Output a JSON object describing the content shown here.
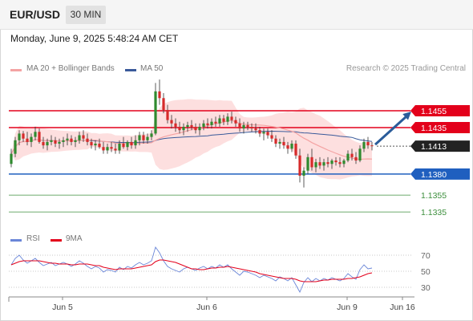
{
  "header": {
    "symbol": "EUR/USD",
    "timeframe": "30 MIN"
  },
  "datetime": "Monday, June 9, 2025 5:48:24 AM CET",
  "legend": {
    "ma20_label": "MA 20 + Bollinger Bands",
    "ma50_label": "MA 50",
    "credit": "Research © 2025 Trading Central"
  },
  "rsi_legend": {
    "rsi_label": "RSI",
    "ma_label": "9MA"
  },
  "colors": {
    "ma20": "#f4a3a3",
    "ma50": "#3a5a9a",
    "bands": "#fdd9d9",
    "resistance": "#e3001b",
    "support": "#1f5fbf",
    "target": "#3d8f3d",
    "bull": "#2f8a2f",
    "bear": "#d62a2a",
    "current": "#222222",
    "arrow": "#2a5c9a",
    "rsi": "#6a86d8",
    "rsi_ma": "#e3001b"
  },
  "chart_data": {
    "type": "candlestick",
    "title": "EUR/USD",
    "ylim": [
      1.1318,
      1.1495
    ],
    "price_levels": [
      {
        "value": 1.1455,
        "label": "1.1455",
        "kind": "resistance"
      },
      {
        "value": 1.1435,
        "label": "1.1435",
        "kind": "resistance"
      },
      {
        "value": 1.1413,
        "label": "1.1413",
        "kind": "current"
      },
      {
        "value": 1.138,
        "label": "1.1380",
        "kind": "support"
      },
      {
        "value": 1.1355,
        "label": "1.1355",
        "kind": "target"
      },
      {
        "value": 1.1335,
        "label": "1.1335",
        "kind": "target"
      }
    ],
    "x_labels": [
      "Jun 5",
      "Jun 6",
      "Jun 9",
      "Jun 16"
    ],
    "candles": [
      [
        1.1392,
        1.141,
        1.1388,
        1.1404
      ],
      [
        1.1404,
        1.1424,
        1.14,
        1.142
      ],
      [
        1.142,
        1.1432,
        1.1414,
        1.1428
      ],
      [
        1.1428,
        1.1431,
        1.1418,
        1.1422
      ],
      [
        1.1422,
        1.143,
        1.1414,
        1.1418
      ],
      [
        1.1418,
        1.1428,
        1.1412,
        1.1424
      ],
      [
        1.1424,
        1.1436,
        1.142,
        1.143
      ],
      [
        1.143,
        1.1434,
        1.1416,
        1.1418
      ],
      [
        1.1418,
        1.1424,
        1.141,
        1.1414
      ],
      [
        1.1414,
        1.1422,
        1.1408,
        1.1418
      ],
      [
        1.1418,
        1.1426,
        1.1414,
        1.142
      ],
      [
        1.142,
        1.1424,
        1.1412,
        1.1416
      ],
      [
        1.1416,
        1.1422,
        1.141,
        1.1418
      ],
      [
        1.1418,
        1.1424,
        1.1412,
        1.142
      ],
      [
        1.142,
        1.1428,
        1.1414,
        1.1422
      ],
      [
        1.1422,
        1.1426,
        1.1414,
        1.1418
      ],
      [
        1.1418,
        1.1424,
        1.1412,
        1.142
      ],
      [
        1.142,
        1.143,
        1.1416,
        1.1426
      ],
      [
        1.1426,
        1.1432,
        1.1418,
        1.1422
      ],
      [
        1.1422,
        1.1428,
        1.1414,
        1.1418
      ],
      [
        1.1418,
        1.1422,
        1.141,
        1.1414
      ],
      [
        1.1414,
        1.142,
        1.1408,
        1.1416
      ],
      [
        1.1416,
        1.1422,
        1.141,
        1.1412
      ],
      [
        1.1412,
        1.1418,
        1.1404,
        1.1408
      ],
      [
        1.1408,
        1.1416,
        1.1404,
        1.1412
      ],
      [
        1.1412,
        1.1418,
        1.1406,
        1.141
      ],
      [
        1.141,
        1.1416,
        1.1404,
        1.1408
      ],
      [
        1.1408,
        1.142,
        1.1404,
        1.1416
      ],
      [
        1.1416,
        1.1424,
        1.141,
        1.1412
      ],
      [
        1.1412,
        1.142,
        1.1408,
        1.1418
      ],
      [
        1.1418,
        1.1424,
        1.141,
        1.1414
      ],
      [
        1.1414,
        1.1426,
        1.141,
        1.142
      ],
      [
        1.142,
        1.143,
        1.1414,
        1.1426
      ],
      [
        1.1426,
        1.143,
        1.1416,
        1.142
      ],
      [
        1.142,
        1.1428,
        1.1416,
        1.1424
      ],
      [
        1.1424,
        1.1432,
        1.142,
        1.1428
      ],
      [
        1.1428,
        1.1488,
        1.1426,
        1.1478
      ],
      [
        1.1478,
        1.1492,
        1.1462,
        1.147
      ],
      [
        1.147,
        1.1476,
        1.1452,
        1.1456
      ],
      [
        1.1456,
        1.1462,
        1.144,
        1.1444
      ],
      [
        1.1444,
        1.145,
        1.1434,
        1.144
      ],
      [
        1.144,
        1.1446,
        1.143,
        1.1436
      ],
      [
        1.1436,
        1.1442,
        1.1428,
        1.1432
      ],
      [
        1.1432,
        1.144,
        1.1426,
        1.1436
      ],
      [
        1.1436,
        1.1442,
        1.143,
        1.1438
      ],
      [
        1.1438,
        1.1444,
        1.1432,
        1.1436
      ],
      [
        1.1436,
        1.144,
        1.1428,
        1.1432
      ],
      [
        1.1432,
        1.144,
        1.1426,
        1.1436
      ],
      [
        1.1436,
        1.1444,
        1.1432,
        1.144
      ],
      [
        1.144,
        1.1446,
        1.1434,
        1.1438
      ],
      [
        1.1438,
        1.1446,
        1.1434,
        1.1442
      ],
      [
        1.1442,
        1.1448,
        1.1436,
        1.144
      ],
      [
        1.144,
        1.145,
        1.1436,
        1.1446
      ],
      [
        1.1446,
        1.145,
        1.1438,
        1.1442
      ],
      [
        1.1442,
        1.1452,
        1.1438,
        1.1448
      ],
      [
        1.1448,
        1.1454,
        1.144,
        1.1444
      ],
      [
        1.1444,
        1.1448,
        1.1436,
        1.144
      ],
      [
        1.144,
        1.1446,
        1.143,
        1.1434
      ],
      [
        1.1434,
        1.1442,
        1.1428,
        1.1438
      ],
      [
        1.1438,
        1.1442,
        1.1432,
        1.1436
      ],
      [
        1.1436,
        1.144,
        1.143,
        1.1434
      ],
      [
        1.1434,
        1.144,
        1.1428,
        1.1432
      ],
      [
        1.1432,
        1.1436,
        1.1424,
        1.1428
      ],
      [
        1.1428,
        1.1434,
        1.142,
        1.143
      ],
      [
        1.143,
        1.1434,
        1.1422,
        1.1426
      ],
      [
        1.1426,
        1.1432,
        1.1418,
        1.1422
      ],
      [
        1.1422,
        1.1426,
        1.1412,
        1.1416
      ],
      [
        1.1416,
        1.1422,
        1.141,
        1.1418
      ],
      [
        1.1418,
        1.1424,
        1.141,
        1.1414
      ],
      [
        1.1414,
        1.1418,
        1.1404,
        1.141
      ],
      [
        1.141,
        1.142,
        1.1406,
        1.1416
      ],
      [
        1.1416,
        1.142,
        1.1398,
        1.1402
      ],
      [
        1.1402,
        1.141,
        1.137,
        1.1378
      ],
      [
        1.1378,
        1.1388,
        1.1364,
        1.1384
      ],
      [
        1.1384,
        1.1404,
        1.138,
        1.14
      ],
      [
        1.14,
        1.141,
        1.1384,
        1.1388
      ],
      [
        1.1388,
        1.1398,
        1.1382,
        1.1394
      ],
      [
        1.1394,
        1.14,
        1.1386,
        1.139
      ],
      [
        1.139,
        1.1398,
        1.1384,
        1.1394
      ],
      [
        1.1394,
        1.14,
        1.1388,
        1.1392
      ],
      [
        1.1392,
        1.1398,
        1.1386,
        1.1396
      ],
      [
        1.1396,
        1.14,
        1.139,
        1.1394
      ],
      [
        1.1394,
        1.14,
        1.1388,
        1.1392
      ],
      [
        1.1392,
        1.1398,
        1.1388,
        1.1396
      ],
      [
        1.1396,
        1.1408,
        1.1394,
        1.1404
      ],
      [
        1.1404,
        1.141,
        1.1396,
        1.14
      ],
      [
        1.14,
        1.1406,
        1.1392,
        1.1396
      ],
      [
        1.1396,
        1.1414,
        1.1394,
        1.141
      ],
      [
        1.141,
        1.1422,
        1.1406,
        1.1418
      ],
      [
        1.1418,
        1.1424,
        1.141,
        1.1414
      ],
      [
        1.1414,
        1.1418,
        1.1408,
        1.1413
      ]
    ],
    "rsi": {
      "ticks": [
        70,
        50,
        30
      ],
      "ylim": [
        20,
        80
      ],
      "rsi_values": [
        58,
        66,
        70,
        64,
        60,
        63,
        66,
        61,
        57,
        59,
        61,
        57,
        59,
        61,
        59,
        56,
        59,
        63,
        60,
        56,
        53,
        56,
        54,
        49,
        52,
        51,
        49,
        55,
        52,
        56,
        54,
        58,
        61,
        58,
        60,
        63,
        80,
        73,
        63,
        56,
        53,
        51,
        49,
        53,
        55,
        53,
        51,
        54,
        56,
        53,
        56,
        54,
        58,
        55,
        58,
        53,
        49,
        45,
        50,
        49,
        47,
        45,
        42,
        45,
        43,
        41,
        38,
        43,
        41,
        38,
        42,
        33,
        24,
        36,
        42,
        37,
        41,
        38,
        41,
        39,
        42,
        40,
        38,
        41,
        47,
        43,
        40,
        52,
        58,
        53,
        54
      ],
      "ma_values": [
        58,
        60,
        62,
        63,
        63,
        63,
        63,
        63,
        62,
        61,
        60,
        60,
        59,
        59,
        59,
        58,
        58,
        59,
        59,
        59,
        58,
        57,
        57,
        55,
        54,
        53,
        52,
        53,
        53,
        53,
        53,
        54,
        55,
        56,
        57,
        58,
        62,
        64,
        64,
        63,
        62,
        61,
        59,
        57,
        55,
        53,
        53,
        52,
        52,
        53,
        54,
        54,
        55,
        55,
        56,
        55,
        54,
        53,
        52,
        51,
        50,
        49,
        47,
        46,
        45,
        44,
        43,
        42,
        41,
        41,
        41,
        40,
        38,
        37,
        37,
        37,
        37,
        38,
        39,
        39,
        40,
        40,
        40,
        40,
        41,
        41,
        42,
        43,
        45,
        47,
        48
      ]
    }
  }
}
